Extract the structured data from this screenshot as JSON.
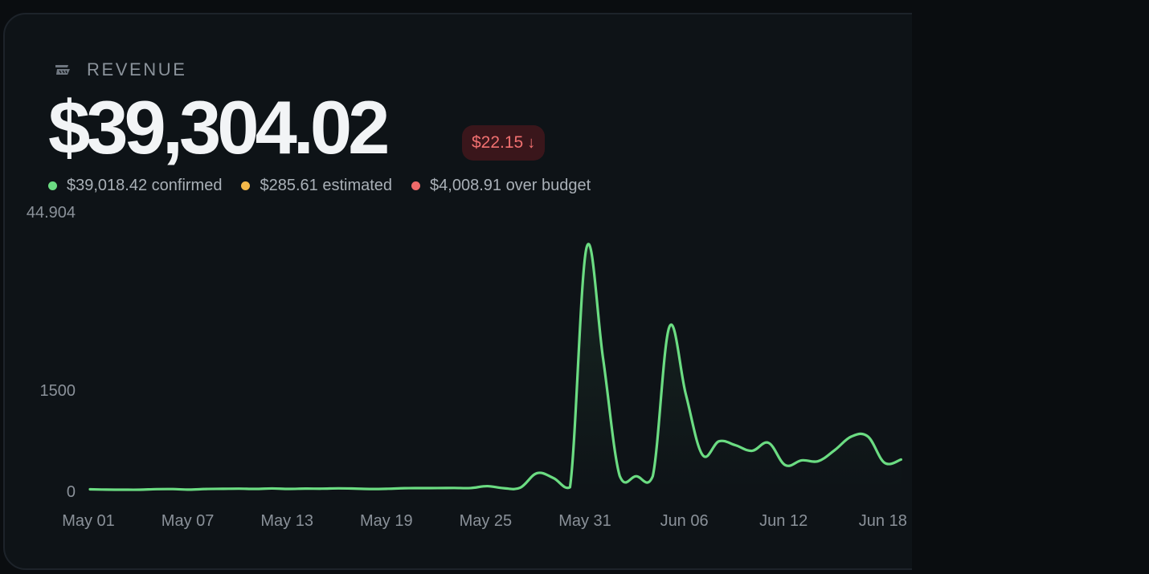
{
  "card": {
    "label": "REVENUE",
    "icon": "revenue-flag-icon",
    "total": "$39,304.02",
    "delta": {
      "value": "$22.15",
      "direction": "down",
      "arrow": "↓"
    }
  },
  "legend": [
    {
      "label": "$39,018.42 confirmed",
      "color": "#6bdc82"
    },
    {
      "label": "$285.61 estimated",
      "color": "#f5b94a"
    },
    {
      "label": "$4,008.91 over budget",
      "color": "#f06a6a"
    }
  ],
  "chart_data": {
    "type": "area",
    "y_ticks": [
      "44.904",
      "1500",
      "0"
    ],
    "x_tick_labels": [
      "May 01",
      "May 07",
      "May 13",
      "May 19",
      "May 25",
      "May 31",
      "Jun 06",
      "Jun 12",
      "Jun 18"
    ],
    "x": [
      "May 01",
      "May 02",
      "May 03",
      "May 04",
      "May 05",
      "May 06",
      "May 07",
      "May 08",
      "May 09",
      "May 10",
      "May 11",
      "May 12",
      "May 13",
      "May 14",
      "May 15",
      "May 16",
      "May 17",
      "May 18",
      "May 19",
      "May 20",
      "May 21",
      "May 22",
      "May 23",
      "May 24",
      "May 25",
      "May 26",
      "May 27",
      "May 28",
      "May 29",
      "May 30",
      "May 31",
      "Jun 01",
      "Jun 02",
      "Jun 03",
      "Jun 04",
      "Jun 05",
      "Jun 06",
      "Jun 07",
      "Jun 08",
      "Jun 09",
      "Jun 10",
      "Jun 11",
      "Jun 12",
      "Jun 13",
      "Jun 14",
      "Jun 15",
      "Jun 16",
      "Jun 17",
      "Jun 18",
      "Jun 19"
    ],
    "series": [
      {
        "color": "#6bdc82",
        "values": [
          5,
          1,
          0,
          0,
          7,
          8,
          1,
          9,
          11,
          13,
          10,
          16,
          10,
          14,
          13,
          17,
          14,
          9,
          12,
          19,
          20,
          21,
          22,
          21,
          45,
          19,
          26,
          208,
          147,
          31,
          3050,
          1650,
          175,
          170,
          170,
          2050,
          1200,
          440,
          610,
          560,
          490,
          590,
          310,
          370,
          360,
          500,
          670,
          670,
          340,
          380
        ]
      }
    ],
    "ylim": [
      0,
      3500
    ],
    "grid": false,
    "legend_position": "top-left"
  }
}
